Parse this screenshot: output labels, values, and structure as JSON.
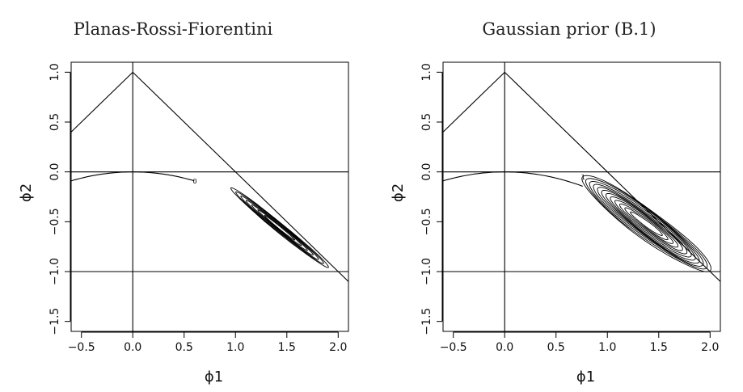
{
  "chart_data": [
    {
      "type": "contour",
      "title": "Planas-Rossi-Fiorentini",
      "xlabel": "ϕ1",
      "ylabel": "ϕ2",
      "xlim": [
        -0.6,
        2.1
      ],
      "ylim": [
        -1.6,
        1.1
      ],
      "xticks": [
        -0.5,
        0.0,
        0.5,
        1.0,
        1.5,
        2.0
      ],
      "xtick_labels": [
        "−0.5",
        "0.0",
        "0.5",
        "1.0",
        "1.5",
        "2.0"
      ],
      "yticks": [
        -1.5,
        -1.0,
        -0.5,
        0.0,
        0.5,
        1.0
      ],
      "ytick_labels": [
        "−1.5",
        "−1.0",
        "−0.5",
        "0.0",
        "0.5",
        "1.0"
      ],
      "reference_lines": {
        "vertical_x": 0.0,
        "horizontal_y": [
          0.0,
          -1.0
        ],
        "lines": [
          "phi2 = 1 + phi1",
          "phi2 = 1 - phi1"
        ],
        "curve": "phi2 = -phi1^2/4"
      },
      "contours": {
        "center": [
          1.43,
          -0.56
        ],
        "direction_deg": -40,
        "half_length": 0.62,
        "half_width": 0.045,
        "levels": 7,
        "start_label": "0",
        "start_point": [
          0.6,
          -0.09
        ]
      }
    },
    {
      "type": "contour",
      "title": "Gaussian prior (B.1)",
      "xlabel": "ϕ1",
      "ylabel": "ϕ2",
      "xlim": [
        -0.6,
        2.1
      ],
      "ylim": [
        -1.6,
        1.1
      ],
      "xticks": [
        -0.5,
        0.0,
        0.5,
        1.0,
        1.5,
        2.0
      ],
      "xtick_labels": [
        "−0.5",
        "0.0",
        "0.5",
        "1.0",
        "1.5",
        "2.0"
      ],
      "yticks": [
        -1.5,
        -1.0,
        -0.5,
        0.0,
        0.5,
        1.0
      ],
      "ytick_labels": [
        "−1.5",
        "−1.0",
        "−0.5",
        "0.0",
        "0.5",
        "1.0"
      ],
      "reference_lines": {
        "vertical_x": 0.0,
        "horizontal_y": [
          0.0,
          -1.0
        ],
        "lines": [
          "phi2 = 1 + phi1",
          "phi2 = 1 - phi1"
        ],
        "curve": "phi2 = -phi1^2/4"
      },
      "contours": {
        "center": [
          1.38,
          -0.52
        ],
        "direction_deg": -37,
        "half_length": 0.78,
        "half_width": 0.14,
        "levels": 12,
        "start_label": "1",
        "start_point": [
          0.76,
          -0.05
        ]
      }
    }
  ]
}
